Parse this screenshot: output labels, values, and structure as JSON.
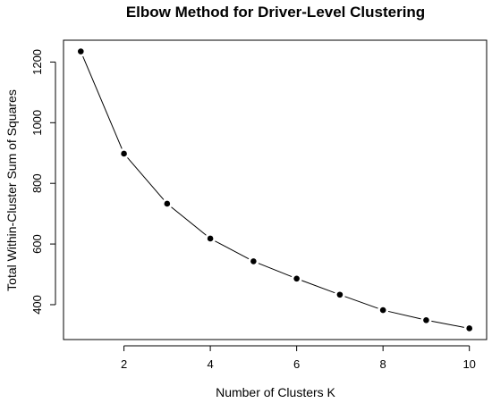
{
  "chart_data": {
    "type": "line",
    "title": "Elbow Method for Driver-Level Clustering",
    "xlabel": "Number of Clusters K",
    "ylabel": "Total Within-Cluster Sum of Squares",
    "x": [
      1,
      2,
      3,
      4,
      5,
      6,
      7,
      8,
      9,
      10
    ],
    "series": [
      {
        "values": [
          1235,
          898,
          733,
          618,
          543,
          486,
          433,
          382,
          349,
          322
        ]
      }
    ],
    "x_ticks": [
      2,
      4,
      6,
      8,
      10
    ],
    "y_ticks": [
      400,
      600,
      800,
      1000,
      1200
    ],
    "xlim": [
      0.6,
      10.4
    ],
    "ylim": [
      285,
      1272
    ],
    "grid": false,
    "legend": "none",
    "colors": {
      "line": "#000000",
      "points": "#000000",
      "axes": "#000000"
    }
  }
}
